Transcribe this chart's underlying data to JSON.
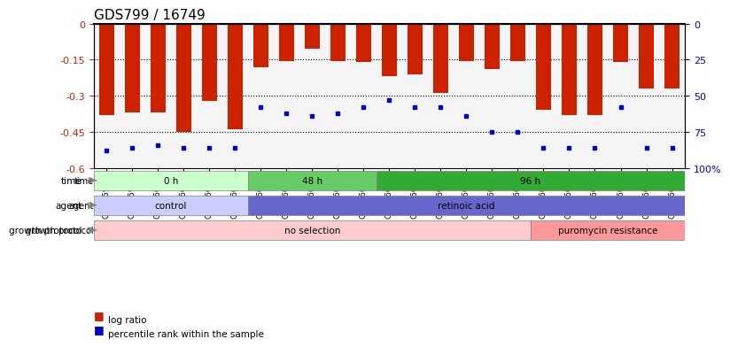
{
  "title": "GDS799 / 16749",
  "samples": [
    "GSM25978",
    "GSM25979",
    "GSM26006",
    "GSM26007",
    "GSM26008",
    "GSM26009",
    "GSM26010",
    "GSM26011",
    "GSM26012",
    "GSM26013",
    "GSM26014",
    "GSM26015",
    "GSM26016",
    "GSM26017",
    "GSM26018",
    "GSM26019",
    "GSM26020",
    "GSM26021",
    "GSM26022",
    "GSM26023",
    "GSM26024",
    "GSM26025",
    "GSM26026"
  ],
  "log_ratio": [
    -0.38,
    -0.37,
    -0.37,
    -0.45,
    -0.32,
    -0.44,
    -0.18,
    -0.155,
    -0.105,
    -0.155,
    -0.16,
    -0.22,
    -0.21,
    -0.29,
    -0.155,
    -0.19,
    -0.155,
    -0.36,
    -0.38,
    -0.38,
    -0.16,
    -0.27,
    -0.27
  ],
  "percentile_rank": [
    0.12,
    0.14,
    0.16,
    0.14,
    0.14,
    0.14,
    0.42,
    0.38,
    0.36,
    0.38,
    0.42,
    0.47,
    0.42,
    0.42,
    0.36,
    0.25,
    0.25,
    0.14,
    0.14,
    0.14,
    0.42,
    0.14,
    0.14
  ],
  "bar_color": "#cc2200",
  "dot_color": "#0000cc",
  "ylim_left": [
    -0.6,
    0.0
  ],
  "ylim_right": [
    0,
    100
  ],
  "yticks_left": [
    0.0,
    -0.15,
    -0.3,
    -0.45,
    -0.6
  ],
  "yticks_right": [
    0,
    25,
    50,
    75,
    100
  ],
  "ytick_labels_left": [
    "0",
    "-0.15",
    "-0.3",
    "-0.45",
    "-0.6"
  ],
  "ytick_labels_right": [
    "100%",
    "75",
    "50",
    "25",
    "0"
  ],
  "hlines": [
    -0.15,
    -0.3,
    -0.45
  ],
  "time_groups": [
    {
      "label": "0 h",
      "start": 0,
      "end": 6,
      "color": "#ccffcc"
    },
    {
      "label": "48 h",
      "start": 6,
      "end": 11,
      "color": "#66cc66"
    },
    {
      "label": "96 h",
      "start": 11,
      "end": 23,
      "color": "#33aa33"
    }
  ],
  "agent_groups": [
    {
      "label": "control",
      "start": 0,
      "end": 6,
      "color": "#ccccff"
    },
    {
      "label": "retinoic acid",
      "start": 6,
      "end": 23,
      "color": "#6666cc"
    }
  ],
  "protocol_groups": [
    {
      "label": "no selection",
      "start": 0,
      "end": 17,
      "color": "#ffcccc"
    },
    {
      "label": "puromycin resistance",
      "start": 17,
      "end": 23,
      "color": "#ff9999"
    }
  ],
  "row_labels": [
    "time",
    "agent",
    "growth protocol"
  ],
  "legend_items": [
    {
      "label": "log ratio",
      "color": "#cc2200"
    },
    {
      "label": "percentile rank within the sample",
      "color": "#0000cc"
    }
  ],
  "background_color": "#ffffff",
  "title_fontsize": 11,
  "axis_label_color_left": "#cc2200",
  "axis_label_color_right": "#0000cc"
}
